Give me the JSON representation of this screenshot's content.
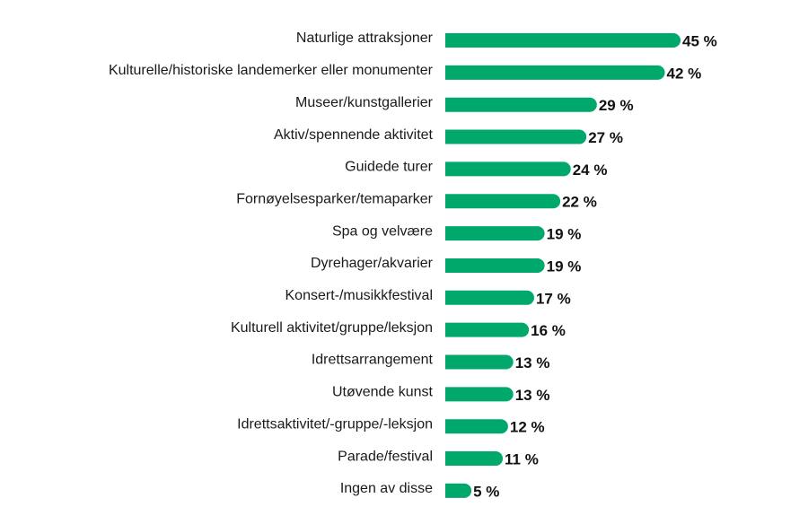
{
  "chart_data": {
    "type": "bar",
    "orientation": "horizontal",
    "categories": [
      "Naturlige attraksjoner",
      "Kulturelle/historiske landemerker eller monumenter",
      "Museer/kunstgallerier",
      "Aktiv/spennende aktivitet",
      "Guidede turer",
      "Fornøyelsesparker/temaparker",
      "Spa og velvære",
      "Dyrehager/akvarier",
      "Konsert-/musikkfestival",
      "Kulturell aktivitet/gruppe/leksjon",
      "Idrettsarrangement",
      "Utøvende kunst",
      "Idrettsaktivitet/-gruppe/-leksjon",
      "Parade/festival",
      "Ingen av disse"
    ],
    "values": [
      45,
      42,
      29,
      27,
      24,
      22,
      19,
      19,
      17,
      16,
      13,
      13,
      12,
      11,
      5
    ],
    "value_labels": [
      "45 %",
      "42 %",
      "29 %",
      "27 %",
      "24 %",
      "22 %",
      "19 %",
      "19 %",
      "17 %",
      "16 %",
      "13 %",
      "13 %",
      "12 %",
      "11 %",
      "5 %"
    ],
    "title": "",
    "xlabel": "",
    "ylabel": "",
    "xlim": [
      0,
      45
    ],
    "grid": false,
    "legend": "none",
    "bar_color": "#00A86B"
  }
}
